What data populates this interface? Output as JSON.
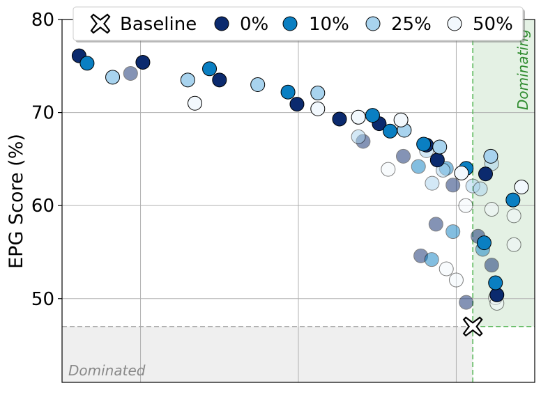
{
  "chart_data": {
    "type": "scatter",
    "title": "",
    "xlabel": "",
    "ylabel": "EPG Score (%)",
    "ylim": [
      41,
      80
    ],
    "yticks": [
      50,
      60,
      70,
      80
    ],
    "ytick_labels": [
      "50",
      "60",
      "70",
      "80"
    ],
    "xlim": [
      0,
      1
    ],
    "x_gridlines": [
      0.166,
      0.5,
      0.834
    ],
    "grid": true,
    "legend_position": "top",
    "colors": {
      "0%": "#0b2a6e",
      "10%": "#0a7fc2",
      "25%": "#a8d3ee",
      "50%": "#f2f8fd",
      "dominating_fill": "#e4f1e4",
      "dominating_edge": "#5cb85c",
      "dominated_fill": "#efefef",
      "dominated_edge": "#aaaaaa"
    },
    "legend": [
      {
        "label": "Baseline",
        "marker": "x-icon"
      },
      {
        "label": "0%",
        "marker": "circle",
        "color": "#0b2a6e"
      },
      {
        "label": "10%",
        "marker": "circle",
        "color": "#0a7fc2"
      },
      {
        "label": "25%",
        "marker": "circle",
        "color": "#a8d3ee"
      },
      {
        "label": "50%",
        "marker": "circle",
        "color": "#f2f8fd"
      }
    ],
    "baseline": {
      "x": 0.869,
      "y": 47.0
    },
    "regions": [
      {
        "label": "Dominating",
        "x_min": 0.869,
        "y_min": 47.0
      },
      {
        "label": "Dominated",
        "x_max": 0.869,
        "y_max": 47.0
      }
    ],
    "series": [
      {
        "name": "0%",
        "color": "#0b2a6e",
        "points": [
          {
            "x": 0.036,
            "y": 76.1,
            "faded": false
          },
          {
            "x": 0.171,
            "y": 75.4,
            "faded": false
          },
          {
            "x": 0.333,
            "y": 73.5,
            "faded": false
          },
          {
            "x": 0.497,
            "y": 70.9,
            "faded": false
          },
          {
            "x": 0.587,
            "y": 69.3,
            "faded": false
          },
          {
            "x": 0.671,
            "y": 68.8,
            "faded": false
          },
          {
            "x": 0.771,
            "y": 66.5,
            "faded": false
          },
          {
            "x": 0.794,
            "y": 64.9,
            "faded": false
          },
          {
            "x": 0.896,
            "y": 63.4,
            "faded": false
          },
          {
            "x": 0.92,
            "y": 50.4,
            "faded": false
          },
          {
            "x": 0.145,
            "y": 74.2,
            "faded": true
          },
          {
            "x": 0.637,
            "y": 66.9,
            "faded": true
          },
          {
            "x": 0.722,
            "y": 65.3,
            "faded": true
          },
          {
            "x": 0.827,
            "y": 62.2,
            "faded": true
          },
          {
            "x": 0.791,
            "y": 58.0,
            "faded": true
          },
          {
            "x": 0.759,
            "y": 54.6,
            "faded": true
          },
          {
            "x": 0.88,
            "y": 56.7,
            "faded": true
          },
          {
            "x": 0.909,
            "y": 53.6,
            "faded": true
          },
          {
            "x": 0.855,
            "y": 49.6,
            "faded": true
          }
        ]
      },
      {
        "name": "10%",
        "color": "#0a7fc2",
        "points": [
          {
            "x": 0.053,
            "y": 75.3,
            "faded": false
          },
          {
            "x": 0.312,
            "y": 74.7,
            "faded": false
          },
          {
            "x": 0.478,
            "y": 72.2,
            "faded": false
          },
          {
            "x": 0.657,
            "y": 69.7,
            "faded": false
          },
          {
            "x": 0.694,
            "y": 68.0,
            "faded": false
          },
          {
            "x": 0.765,
            "y": 66.6,
            "faded": false
          },
          {
            "x": 0.855,
            "y": 64.0,
            "faded": false
          },
          {
            "x": 0.893,
            "y": 56.0,
            "faded": false
          },
          {
            "x": 0.917,
            "y": 51.7,
            "faded": false
          },
          {
            "x": 0.954,
            "y": 60.6,
            "faded": false
          },
          {
            "x": 0.813,
            "y": 64.0,
            "faded": true
          },
          {
            "x": 0.754,
            "y": 64.2,
            "faded": true
          },
          {
            "x": 0.827,
            "y": 57.2,
            "faded": true
          },
          {
            "x": 0.782,
            "y": 54.2,
            "faded": true
          },
          {
            "x": 0.89,
            "y": 55.3,
            "faded": true
          }
        ]
      },
      {
        "name": "25%",
        "color": "#a8d3ee",
        "points": [
          {
            "x": 0.107,
            "y": 73.8,
            "faded": false
          },
          {
            "x": 0.266,
            "y": 73.5,
            "faded": false
          },
          {
            "x": 0.414,
            "y": 73.0,
            "faded": false
          },
          {
            "x": 0.541,
            "y": 72.1,
            "faded": false
          },
          {
            "x": 0.724,
            "y": 68.1,
            "faded": false
          },
          {
            "x": 0.799,
            "y": 66.3,
            "faded": false
          },
          {
            "x": 0.907,
            "y": 65.3,
            "faded": false
          },
          {
            "x": 0.627,
            "y": 67.4,
            "faded": true
          },
          {
            "x": 0.771,
            "y": 65.9,
            "faded": true
          },
          {
            "x": 0.806,
            "y": 63.8,
            "faded": true
          },
          {
            "x": 0.783,
            "y": 62.4,
            "faded": true
          },
          {
            "x": 0.869,
            "y": 62.1,
            "faded": true
          },
          {
            "x": 0.885,
            "y": 61.8,
            "faded": true
          },
          {
            "x": 0.909,
            "y": 64.5,
            "faded": true
          }
        ]
      },
      {
        "name": "50%",
        "color": "#f2f8fd",
        "points": [
          {
            "x": 0.281,
            "y": 71.0,
            "faded": false
          },
          {
            "x": 0.541,
            "y": 70.4,
            "faded": false
          },
          {
            "x": 0.627,
            "y": 69.5,
            "faded": false
          },
          {
            "x": 0.717,
            "y": 69.2,
            "faded": false
          },
          {
            "x": 0.845,
            "y": 63.5,
            "faded": false
          },
          {
            "x": 0.972,
            "y": 62.0,
            "faded": false
          },
          {
            "x": 0.69,
            "y": 63.9,
            "faded": true
          },
          {
            "x": 0.854,
            "y": 60.0,
            "faded": true
          },
          {
            "x": 0.909,
            "y": 59.6,
            "faded": true
          },
          {
            "x": 0.956,
            "y": 58.9,
            "faded": true
          },
          {
            "x": 0.956,
            "y": 55.8,
            "faded": true
          },
          {
            "x": 0.813,
            "y": 53.2,
            "faded": true
          },
          {
            "x": 0.834,
            "y": 52.0,
            "faded": true
          },
          {
            "x": 0.917,
            "y": 50.1,
            "faded": true
          },
          {
            "x": 0.92,
            "y": 49.5,
            "faded": true
          }
        ]
      }
    ]
  }
}
